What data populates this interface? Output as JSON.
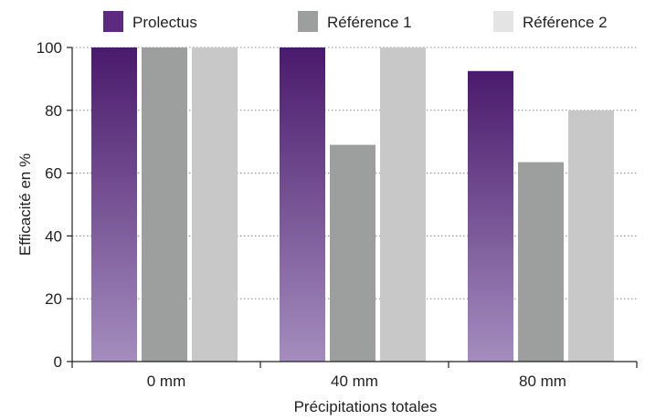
{
  "chart_data": {
    "type": "bar",
    "categories": [
      "0 mm",
      "40 mm",
      "80 mm"
    ],
    "series": [
      {
        "name": "Prolectus",
        "values": [
          100,
          100,
          92.5
        ],
        "color_top": "#4a1a6c",
        "color_bottom": "#a48dbe"
      },
      {
        "name": "Référence 1",
        "values": [
          100,
          69,
          63.5
        ],
        "color": "#9d9f9e"
      },
      {
        "name": "Référence 2",
        "values": [
          100,
          100,
          80
        ],
        "color": "#c7c8c7"
      }
    ],
    "legend_colors": [
      "#5e2a80",
      "#9d9f9e",
      "#e4e4e4"
    ],
    "xlabel": "Précipitations totales",
    "ylabel": "Efficacité en %",
    "ylim": [
      0,
      100
    ],
    "yticks": [
      "0",
      "20",
      "40",
      "60",
      "80",
      "100"
    ],
    "grid": "horizontal dotted",
    "legend_position": "top"
  }
}
